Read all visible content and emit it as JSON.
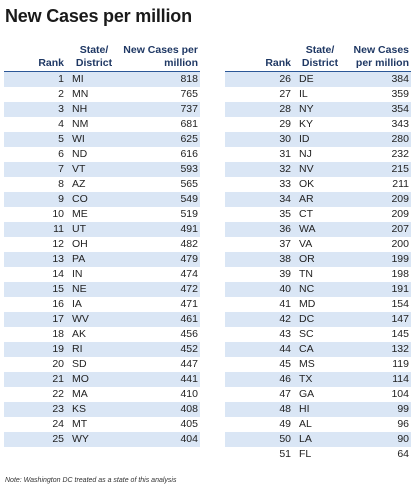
{
  "chart_data": {
    "type": "table",
    "title": "New Cases per million",
    "columns": [
      "Rank",
      "State/ District",
      "New Cases per million"
    ],
    "left": {
      "rows": [
        {
          "rank": "1",
          "state": "MI",
          "value": "818"
        },
        {
          "rank": "2",
          "state": "MN",
          "value": "765"
        },
        {
          "rank": "3",
          "state": "NH",
          "value": "737"
        },
        {
          "rank": "4",
          "state": "NM",
          "value": "681"
        },
        {
          "rank": "5",
          "state": "WI",
          "value": "625"
        },
        {
          "rank": "6",
          "state": "ND",
          "value": "616"
        },
        {
          "rank": "7",
          "state": "VT",
          "value": "593"
        },
        {
          "rank": "8",
          "state": "AZ",
          "value": "565"
        },
        {
          "rank": "9",
          "state": "CO",
          "value": "549"
        },
        {
          "rank": "10",
          "state": "ME",
          "value": "519"
        },
        {
          "rank": "11",
          "state": "UT",
          "value": "491"
        },
        {
          "rank": "12",
          "state": "OH",
          "value": "482"
        },
        {
          "rank": "13",
          "state": "PA",
          "value": "479"
        },
        {
          "rank": "14",
          "state": "IN",
          "value": "474"
        },
        {
          "rank": "15",
          "state": "NE",
          "value": "472"
        },
        {
          "rank": "16",
          "state": "IA",
          "value": "471"
        },
        {
          "rank": "17",
          "state": "WV",
          "value": "461"
        },
        {
          "rank": "18",
          "state": "AK",
          "value": "456"
        },
        {
          "rank": "19",
          "state": "RI",
          "value": "452"
        },
        {
          "rank": "20",
          "state": "SD",
          "value": "447"
        },
        {
          "rank": "21",
          "state": "MO",
          "value": "441"
        },
        {
          "rank": "22",
          "state": "MA",
          "value": "410"
        },
        {
          "rank": "23",
          "state": "KS",
          "value": "408"
        },
        {
          "rank": "24",
          "state": "MT",
          "value": "405"
        },
        {
          "rank": "25",
          "state": "WY",
          "value": "404"
        }
      ]
    },
    "right": {
      "rows": [
        {
          "rank": "26",
          "state": "DE",
          "value": "384"
        },
        {
          "rank": "27",
          "state": "IL",
          "value": "359"
        },
        {
          "rank": "28",
          "state": "NY",
          "value": "354"
        },
        {
          "rank": "29",
          "state": "KY",
          "value": "343"
        },
        {
          "rank": "30",
          "state": "ID",
          "value": "280"
        },
        {
          "rank": "31",
          "state": "NJ",
          "value": "232"
        },
        {
          "rank": "32",
          "state": "NV",
          "value": "215"
        },
        {
          "rank": "33",
          "state": "OK",
          "value": "211"
        },
        {
          "rank": "34",
          "state": "AR",
          "value": "209"
        },
        {
          "rank": "35",
          "state": "CT",
          "value": "209"
        },
        {
          "rank": "36",
          "state": "WA",
          "value": "207"
        },
        {
          "rank": "37",
          "state": "VA",
          "value": "200"
        },
        {
          "rank": "38",
          "state": "OR",
          "value": "199"
        },
        {
          "rank": "39",
          "state": "TN",
          "value": "198"
        },
        {
          "rank": "40",
          "state": "NC",
          "value": "191"
        },
        {
          "rank": "41",
          "state": "MD",
          "value": "154"
        },
        {
          "rank": "42",
          "state": "DC",
          "value": "147"
        },
        {
          "rank": "43",
          "state": "SC",
          "value": "145"
        },
        {
          "rank": "44",
          "state": "CA",
          "value": "132"
        },
        {
          "rank": "45",
          "state": "MS",
          "value": "119"
        },
        {
          "rank": "46",
          "state": "TX",
          "value": "114"
        },
        {
          "rank": "47",
          "state": "GA",
          "value": "104"
        },
        {
          "rank": "48",
          "state": "HI",
          "value": "99"
        },
        {
          "rank": "49",
          "state": "AL",
          "value": "96"
        },
        {
          "rank": "50",
          "state": "LA",
          "value": "90"
        },
        {
          "rank": "51",
          "state": "FL",
          "value": "64"
        }
      ]
    },
    "note": "Note: Washington DC treated as a state of this analysis",
    "colors": {
      "header_text": "#1f3864",
      "stripe": "#dae6f5",
      "rule": "#2b5797"
    }
  }
}
